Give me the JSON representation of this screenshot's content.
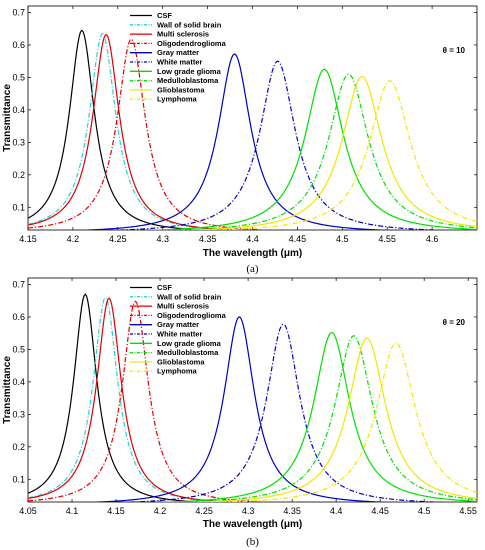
{
  "chart_data": [
    {
      "type": "line",
      "panel_label": "(a)",
      "annotation": "θ = 10",
      "xlabel": "The wavelength (μm)",
      "ylabel": "Transmittance",
      "xlim": [
        4.15,
        4.65
      ],
      "ylim": [
        0.03,
        0.72
      ],
      "xticks": [
        "4.15",
        "4.2",
        "4.25",
        "4.3",
        "4.35",
        "4.4",
        "4.45",
        "4.5",
        "4.55",
        "4.6"
      ],
      "xtick_values": [
        4.15,
        4.2,
        4.25,
        4.3,
        4.35,
        4.4,
        4.45,
        4.5,
        4.55,
        4.6
      ],
      "yticks": [
        "0.1",
        "0.2",
        "0.3",
        "0.4",
        "0.5",
        "0.6",
        "0.7"
      ],
      "ytick_values": [
        0.1,
        0.2,
        0.3,
        0.4,
        0.5,
        0.6,
        0.7
      ],
      "legend_position": "top-center",
      "series": [
        {
          "name": "CSF",
          "color": "#000000",
          "dash": "solid",
          "peak_x": 4.21,
          "peak_y": 0.645,
          "half_width": 0.017
        },
        {
          "name": "Wall of solid brain",
          "color": "#22d3d8",
          "dash": "dashdot",
          "peak_x": 4.233,
          "peak_y": 0.635,
          "half_width": 0.018
        },
        {
          "name": "Multi sclerosis",
          "color": "#e00000",
          "dash": "solid",
          "peak_x": 4.237,
          "peak_y": 0.632,
          "half_width": 0.018
        },
        {
          "name": "Oligodendroglioma",
          "color": "#e00000",
          "dash": "dashdot",
          "peak_x": 4.265,
          "peak_y": 0.618,
          "half_width": 0.019
        },
        {
          "name": "Gray matter",
          "color": "#0000c0",
          "dash": "solid",
          "peak_x": 4.38,
          "peak_y": 0.572,
          "half_width": 0.022
        },
        {
          "name": "White matter",
          "color": "#0000c0",
          "dash": "dashdot",
          "peak_x": 4.428,
          "peak_y": 0.55,
          "half_width": 0.024
        },
        {
          "name": "Low grade glioma",
          "color": "#00e000",
          "dash": "solid",
          "peak_x": 4.48,
          "peak_y": 0.525,
          "half_width": 0.026
        },
        {
          "name": "Medulloblastoma",
          "color": "#00e000",
          "dash": "dashdot",
          "peak_x": 4.507,
          "peak_y": 0.51,
          "half_width": 0.027
        },
        {
          "name": "Glioblastoma",
          "color": "#f2e600",
          "dash": "solid",
          "peak_x": 4.522,
          "peak_y": 0.503,
          "half_width": 0.027
        },
        {
          "name": "Lymphoma",
          "color": "#f2e600",
          "dash": "dashdot",
          "peak_x": 4.553,
          "peak_y": 0.49,
          "half_width": 0.028
        }
      ]
    },
    {
      "type": "line",
      "panel_label": "(b)",
      "annotation": "θ = 20",
      "xlabel": "The wavelength (μm)",
      "ylabel": "Transmittance",
      "xlim": [
        4.05,
        4.56
      ],
      "ylim": [
        0.03,
        0.72
      ],
      "xticks": [
        "4.05",
        "4.1",
        "4.15",
        "4.2",
        "4.25",
        "4.3",
        "4.35",
        "4.4",
        "4.45",
        "4.5",
        "4.55"
      ],
      "xtick_values": [
        4.05,
        4.1,
        4.15,
        4.2,
        4.25,
        4.3,
        4.35,
        4.4,
        4.45,
        4.5,
        4.55
      ],
      "yticks": [
        "0.1",
        "0.2",
        "0.3",
        "0.4",
        "0.5",
        "0.6",
        "0.7"
      ],
      "ytick_values": [
        0.1,
        0.2,
        0.3,
        0.4,
        0.5,
        0.6,
        0.7
      ],
      "legend_position": "top-center",
      "series": [
        {
          "name": "CSF",
          "color": "#000000",
          "dash": "solid",
          "peak_x": 4.115,
          "peak_y": 0.67,
          "half_width": 0.016
        },
        {
          "name": "Wall of solid brain",
          "color": "#22d3d8",
          "dash": "dashdot",
          "peak_x": 4.138,
          "peak_y": 0.66,
          "half_width": 0.017
        },
        {
          "name": "Multi sclerosis",
          "color": "#e00000",
          "dash": "solid",
          "peak_x": 4.142,
          "peak_y": 0.658,
          "half_width": 0.017
        },
        {
          "name": "Oligodendroglioma",
          "color": "#e00000",
          "dash": "dashdot",
          "peak_x": 4.172,
          "peak_y": 0.648,
          "half_width": 0.018
        },
        {
          "name": "Gray matter",
          "color": "#0000c0",
          "dash": "solid",
          "peak_x": 4.29,
          "peak_y": 0.6,
          "half_width": 0.021
        },
        {
          "name": "White matter",
          "color": "#0000c0",
          "dash": "dashdot",
          "peak_x": 4.34,
          "peak_y": 0.578,
          "half_width": 0.023
        },
        {
          "name": "Low grade glioma",
          "color": "#00e000",
          "dash": "solid",
          "peak_x": 4.395,
          "peak_y": 0.552,
          "half_width": 0.025
        },
        {
          "name": "Medulloblastoma",
          "color": "#00e000",
          "dash": "dashdot",
          "peak_x": 4.42,
          "peak_y": 0.542,
          "half_width": 0.026
        },
        {
          "name": "Glioblastoma",
          "color": "#f2e600",
          "dash": "solid",
          "peak_x": 4.435,
          "peak_y": 0.535,
          "half_width": 0.026
        },
        {
          "name": "Lymphoma",
          "color": "#f2e600",
          "dash": "dashdot",
          "peak_x": 4.468,
          "peak_y": 0.52,
          "half_width": 0.027
        }
      ]
    }
  ]
}
